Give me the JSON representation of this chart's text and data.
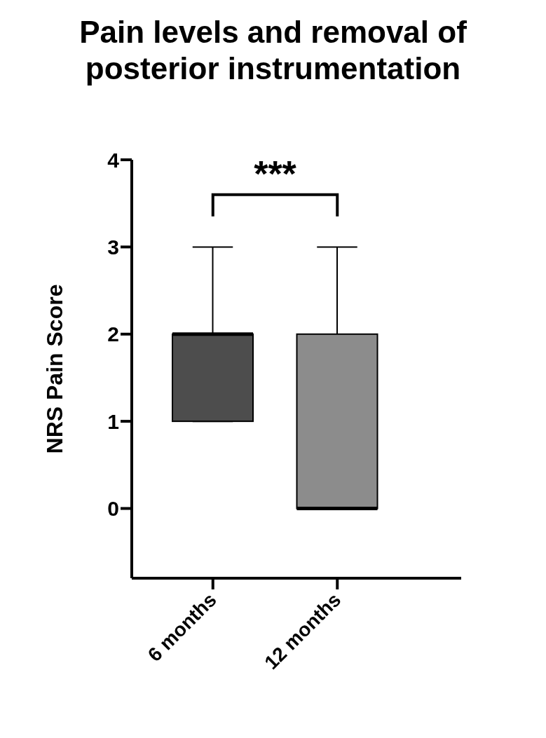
{
  "chart_data": {
    "type": "box",
    "title": "Pain levels and removal of posterior instrumentation",
    "categories": [
      "6 months",
      "12 months"
    ],
    "boxes": [
      {
        "low": 1,
        "q1": 1,
        "median": 2,
        "q3": 2,
        "high": 3
      },
      {
        "low": 0,
        "q1": 0,
        "median": 0,
        "q3": 2,
        "high": 3
      }
    ],
    "colors": [
      "#4d4d4d",
      "#8c8c8c"
    ],
    "ylabel": "NRS Pain Score",
    "ylim": [
      -0.8,
      4
    ],
    "yticks": [
      0,
      1,
      2,
      3,
      4
    ],
    "annotations": [
      "***"
    ],
    "grid": false,
    "legend": false
  }
}
